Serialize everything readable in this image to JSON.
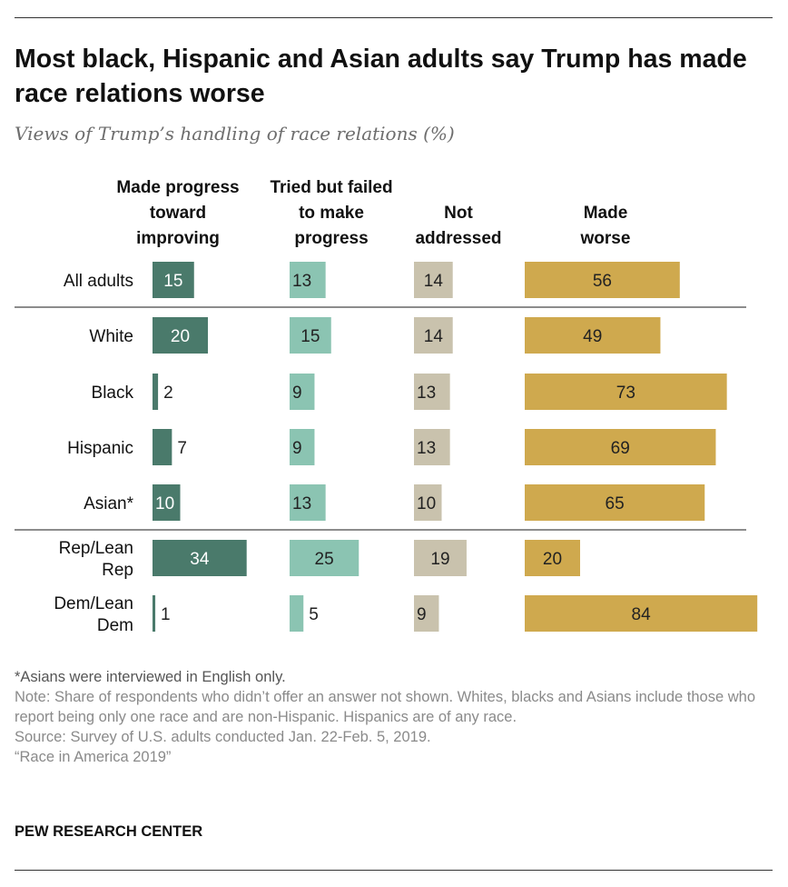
{
  "title": "Most black, Hispanic and Asian adults say Trump has made race relations worse",
  "subtitle": "Views of Trump’s handling of race relations (%)",
  "footnotes": {
    "asian": "*Asians were interviewed in English only.",
    "note": "Note: Share of respondents who didn’t offer an answer not shown. Whites, blacks and Asians include those who report being only one race and are non-Hispanic. Hispanics are of any race.",
    "source": "Source: Survey of U.S. adults conducted Jan. 22-Feb. 5, 2019.",
    "report": "“Race in America 2019”"
  },
  "brand": "PEW RESEARCH CENTER",
  "chart_data": {
    "type": "bar",
    "orientation": "horizontal",
    "layout": "separate-columns",
    "categories": [
      [
        "All adults"
      ],
      [
        "White"
      ],
      [
        "Black"
      ],
      [
        "Hispanic"
      ],
      [
        "Asian*"
      ],
      [
        "Rep/Lean",
        "Rep"
      ],
      [
        "Dem/Lean",
        "Dem"
      ]
    ],
    "groups": [
      1,
      4,
      2
    ],
    "series": [
      {
        "name": [
          "Made progress",
          "toward",
          "improving"
        ],
        "color": "#4a7a6b",
        "text_color": "#ffffff",
        "values": [
          15,
          20,
          2,
          7,
          10,
          34,
          1
        ]
      },
      {
        "name": [
          "Tried but failed",
          "to make",
          "progress"
        ],
        "color": "#8bc4b2",
        "text_color": "#222222",
        "values": [
          13,
          15,
          9,
          9,
          13,
          25,
          5
        ]
      },
      {
        "name": [
          "Not",
          "addressed"
        ],
        "color": "#c9c2ad",
        "text_color": "#222222",
        "values": [
          14,
          14,
          13,
          13,
          10,
          19,
          9
        ]
      },
      {
        "name": [
          "Made",
          "worse"
        ],
        "color": "#cfa94e",
        "text_color": "#222222",
        "values": [
          56,
          49,
          73,
          69,
          65,
          20,
          84
        ]
      }
    ],
    "xlabel": "",
    "ylabel": "",
    "grid": false,
    "legend": "column headers above bars"
  }
}
